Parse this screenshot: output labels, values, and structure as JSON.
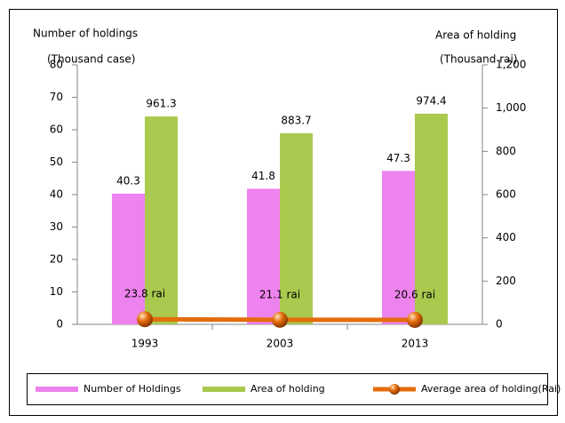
{
  "chart_data": {
    "type": "bar",
    "y_label_line1": "Number of holdings",
    "y_label_line2": "(Thousand case)",
    "y2_label_line1": "Area of holding",
    "y2_label_line2": "(Thousand rai)",
    "categories": [
      "1993",
      "2003",
      "2013"
    ],
    "series": [
      {
        "name": "Number of Holdings",
        "type": "bar",
        "color": "#ee82ee",
        "values": [
          40.3,
          41.8,
          47.3
        ]
      },
      {
        "name": "Area of holding",
        "type": "bar",
        "color": "#a9c94f",
        "axis": "y2",
        "values": [
          961.3,
          883.7,
          974.4
        ]
      },
      {
        "name": "Average area of holding(Rai)",
        "type": "line",
        "color": "#e46c0a",
        "axis": "y2",
        "values": [
          23.8,
          21.1,
          20.6
        ],
        "value_labels": [
          "23.8 rai",
          "21.1 rai",
          "20.6 rai"
        ]
      }
    ],
    "ylim": [
      0,
      80
    ],
    "yticks": [
      0,
      10,
      20,
      30,
      40,
      50,
      60,
      70,
      80
    ],
    "y2lim": [
      0,
      1200
    ],
    "y2ticks": [
      0,
      200,
      400,
      600,
      800,
      {
        "value": 1000,
        "label": "1,000"
      },
      {
        "value": 1200,
        "label": "1,200"
      }
    ],
    "legend": "bottom"
  }
}
